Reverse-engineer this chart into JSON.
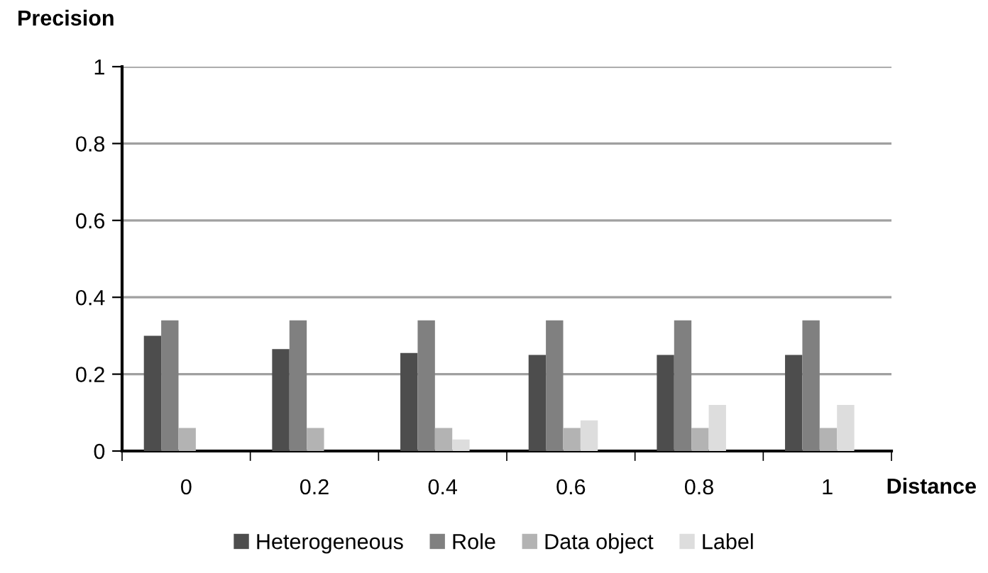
{
  "chart_data": {
    "type": "bar",
    "ylabel": "Precision",
    "xlabel": "Distance",
    "categories": [
      "0",
      "0.2",
      "0.4",
      "0.6",
      "0.8",
      "1"
    ],
    "series": [
      {
        "name": "Heterogeneous",
        "color": "#4d4d4d",
        "values": [
          0.3,
          0.265,
          0.255,
          0.25,
          0.25,
          0.25
        ]
      },
      {
        "name": "Role",
        "color": "#808080",
        "values": [
          0.34,
          0.34,
          0.34,
          0.34,
          0.34,
          0.34
        ]
      },
      {
        "name": "Data object",
        "color": "#b3b3b3",
        "values": [
          0.06,
          0.06,
          0.06,
          0.06,
          0.06,
          0.06
        ]
      },
      {
        "name": "Label",
        "color": "#dddddd",
        "values": [
          0,
          0,
          0.03,
          0.08,
          0.12,
          0.12
        ]
      }
    ],
    "ylim": [
      0,
      1
    ],
    "yticks": [
      0,
      0.2,
      0.4,
      0.6,
      0.8,
      1
    ],
    "grid": "y",
    "legend": "bottom"
  }
}
